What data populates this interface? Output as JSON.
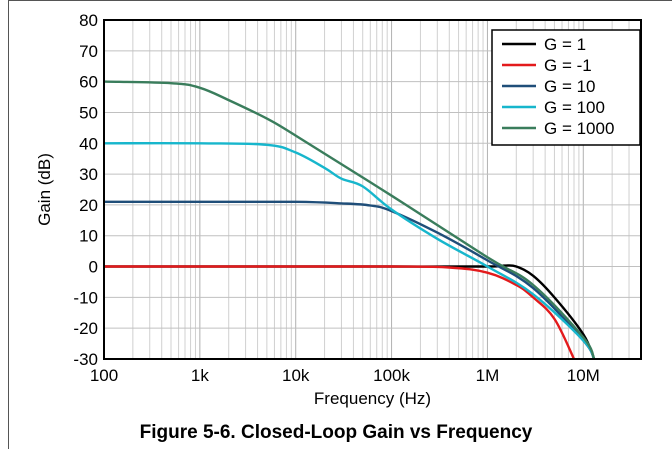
{
  "caption": "Figure 5-6. Closed-Loop Gain vs Frequency",
  "chart_data": {
    "type": "line",
    "xlabel": "Frequency (Hz)",
    "ylabel": "Gain (dB)",
    "x_scale": "log",
    "xlim": [
      100,
      40000000
    ],
    "ylim": [
      -30,
      80
    ],
    "x_ticks": [
      {
        "value": 100,
        "label": "100"
      },
      {
        "value": 1000,
        "label": "1k"
      },
      {
        "value": 10000,
        "label": "10k"
      },
      {
        "value": 100000,
        "label": "100k"
      },
      {
        "value": 1000000,
        "label": "1M"
      },
      {
        "value": 10000000,
        "label": "10M"
      }
    ],
    "y_ticks": [
      -30,
      -20,
      -10,
      0,
      10,
      20,
      30,
      40,
      50,
      60,
      70,
      80
    ],
    "grid": true,
    "legend_position": "top-right",
    "series": [
      {
        "name": "G = 1",
        "color": "#000000",
        "x": [
          100,
          1000,
          10000,
          100000,
          1000000,
          1500000,
          2000000,
          3000000,
          5000000,
          10000000,
          13000000
        ],
        "y": [
          0,
          0,
          0,
          0,
          0,
          0.3,
          0,
          -3,
          -10,
          -22,
          -30
        ]
      },
      {
        "name": "G = -1",
        "color": "#e31a1c",
        "x": [
          100,
          1000,
          10000,
          100000,
          400000,
          1000000,
          2000000,
          3000000,
          5000000,
          8000000
        ],
        "y": [
          0,
          0,
          0,
          0,
          -0.3,
          -2,
          -6,
          -10,
          -17,
          -30
        ]
      },
      {
        "name": "G = 10",
        "color": "#1f4e79",
        "x": [
          100,
          1000,
          10000,
          30000,
          60000,
          100000,
          300000,
          1000000,
          3000000,
          10000000,
          13000000
        ],
        "y": [
          21,
          21,
          21,
          20.5,
          19.8,
          18,
          11,
          2,
          -7,
          -24,
          -30
        ]
      },
      {
        "name": "G = 100",
        "color": "#17b6cc",
        "x": [
          100,
          1000,
          5000,
          10000,
          20000,
          30000,
          50000,
          100000,
          300000,
          1000000,
          3000000,
          10000000,
          13000000
        ],
        "y": [
          40,
          40,
          39.5,
          37,
          32,
          28.5,
          26,
          18.5,
          9,
          0,
          -9,
          -24,
          -30
        ]
      },
      {
        "name": "G = 1000",
        "color": "#3a7d5c",
        "x": [
          100,
          500,
          1000,
          2000,
          5000,
          10000,
          100000,
          1000000,
          3000000,
          10000000,
          13000000
        ],
        "y": [
          60,
          59.5,
          58,
          54,
          48,
          42.5,
          23,
          3,
          -6,
          -23,
          -30
        ]
      }
    ]
  }
}
